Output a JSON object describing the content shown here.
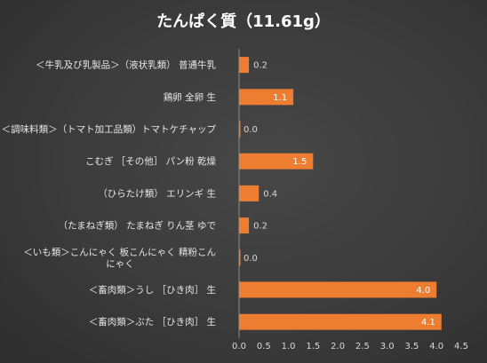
{
  "chart_data": {
    "type": "bar",
    "orientation": "horizontal",
    "title": "たんぱく質（11.61g）",
    "categories": [
      "＜牛乳及び乳製品＞（液状乳類） 普通牛乳",
      "鶏卵 全卵 生",
      "＜調味料類＞（トマト加工品類）トマトケチャップ",
      "こむぎ ［その他］ パン粉 乾燥",
      "（ひらたけ類） エリンギ 生",
      "（たまねぎ類） たまねぎ りん茎 ゆで",
      "＜いも類＞こんにゃく 板こんにゃく 精粉こんにゃく",
      "＜畜肉類＞うし ［ひき肉］ 生",
      "＜畜肉類＞ぶた ［ひき肉］ 生"
    ],
    "category_lines": [
      [
        "＜牛乳及び乳製品＞（液状乳類） 普通牛乳"
      ],
      [
        "鶏卵 全卵 生"
      ],
      [
        "＜調味料類＞（トマト加工品類）トマトケチャップ"
      ],
      [
        "こむぎ ［その他］ パン粉 乾燥"
      ],
      [
        "（ひらたけ類） エリンギ 生"
      ],
      [
        "（たまねぎ類） たまねぎ りん茎 ゆで"
      ],
      [
        "＜いも類＞こんにゃく 板こんにゃく 精粉こん",
        "にゃく"
      ],
      [
        "＜畜肉類＞うし ［ひき肉］ 生"
      ],
      [
        "＜畜肉類＞ぶた ［ひき肉］ 生"
      ]
    ],
    "values": [
      0.2,
      1.1,
      0.0,
      1.5,
      0.4,
      0.2,
      0.0,
      4.0,
      4.1
    ],
    "data_labels": [
      "0.2",
      "1.1",
      "0.0",
      "1.5",
      "0.4",
      "0.2",
      "0.0",
      "4.0",
      "4.1"
    ],
    "xlim": [
      0,
      4.5
    ],
    "xticks": [
      "0.0",
      "0.5",
      "1.0",
      "1.5",
      "2.0",
      "2.5",
      "3.0",
      "3.5",
      "4.0",
      "4.5"
    ],
    "xlabel": "",
    "ylabel": "",
    "grid": false,
    "legend": "none",
    "bar_color": "#ed7d31"
  }
}
